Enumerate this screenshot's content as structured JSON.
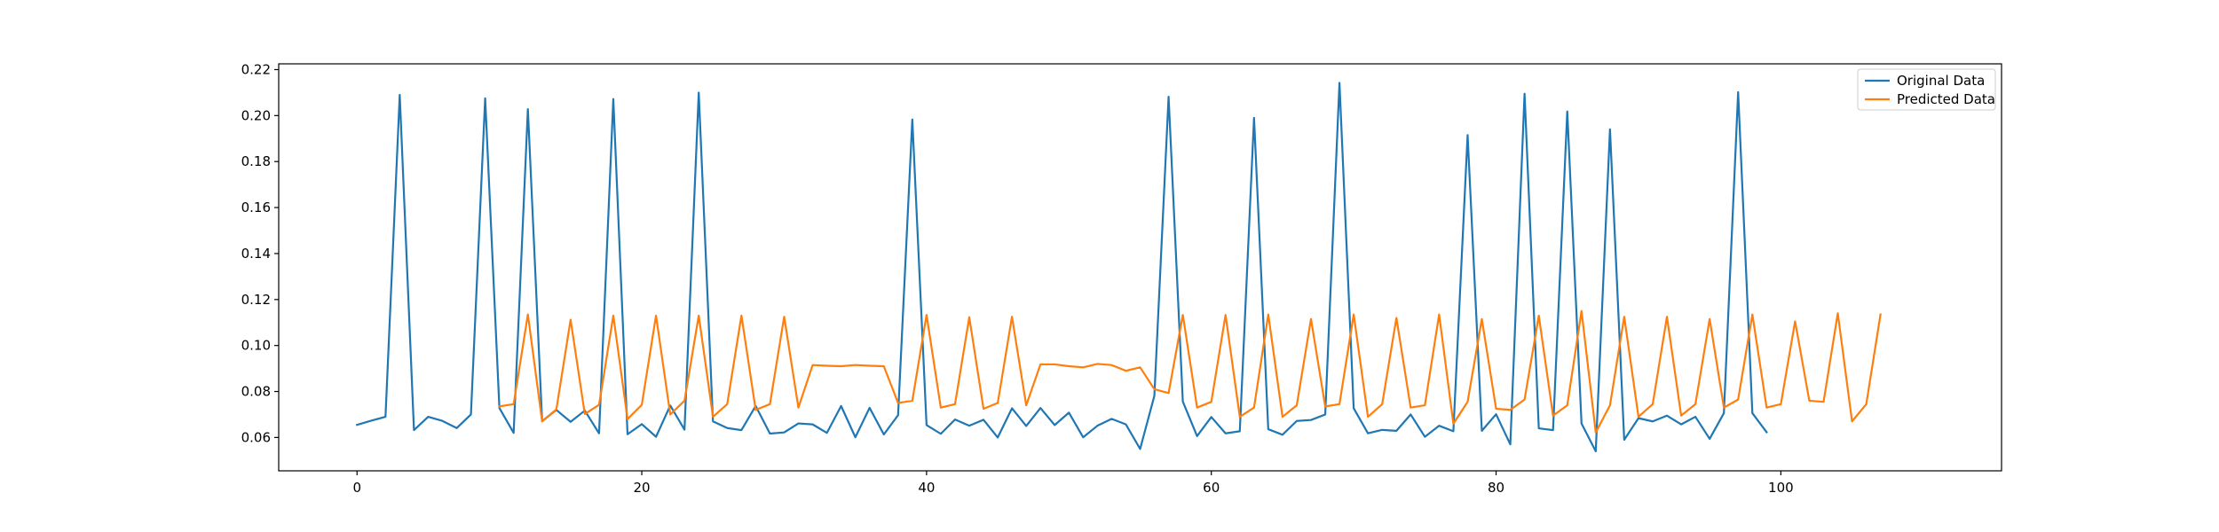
{
  "chart_data": {
    "type": "line",
    "title": "",
    "xlabel": "",
    "ylabel": "",
    "xlim": [
      -5.5,
      115.5
    ],
    "ylim": [
      0.0455,
      0.2225
    ],
    "xticks": [
      0,
      20,
      40,
      60,
      80,
      100
    ],
    "yticks": [
      0.06,
      0.08,
      0.1,
      0.12,
      0.14,
      0.16,
      0.18,
      0.2,
      0.22
    ],
    "xtick_labels": [
      "0",
      "20",
      "40",
      "60",
      "80",
      "100"
    ],
    "ytick_labels": [
      "0.06",
      "0.08",
      "0.10",
      "0.12",
      "0.14",
      "0.16",
      "0.18",
      "0.20",
      "0.22"
    ],
    "grid": false,
    "legend_position": "top-right",
    "series": [
      {
        "name": "Original Data",
        "color": "#1f77b4",
        "x_start": 0,
        "values": [
          0.0655,
          0.0673,
          0.069,
          0.209,
          0.0632,
          0.069,
          0.0672,
          0.0641,
          0.07,
          0.2075,
          0.0728,
          0.062,
          0.2028,
          0.0671,
          0.072,
          0.0668,
          0.0717,
          0.0618,
          0.2072,
          0.0614,
          0.0658,
          0.0603,
          0.0739,
          0.0634,
          0.21,
          0.067,
          0.0641,
          0.0632,
          0.0737,
          0.0617,
          0.0622,
          0.0661,
          0.0657,
          0.062,
          0.0737,
          0.0601,
          0.0729,
          0.0613,
          0.0697,
          0.1983,
          0.0654,
          0.0616,
          0.0678,
          0.0651,
          0.0677,
          0.06,
          0.0727,
          0.065,
          0.0728,
          0.0654,
          0.0708,
          0.0601,
          0.0651,
          0.0681,
          0.0657,
          0.055,
          0.0781,
          0.2082,
          0.0756,
          0.0606,
          0.0689,
          0.0618,
          0.0627,
          0.199,
          0.0636,
          0.0612,
          0.0672,
          0.0676,
          0.07,
          0.2142,
          0.0727,
          0.0618,
          0.0633,
          0.0629,
          0.07,
          0.0603,
          0.0651,
          0.0627,
          0.1915,
          0.0629,
          0.0701,
          0.057,
          0.2095,
          0.064,
          0.0632,
          0.2018,
          0.0661,
          0.054,
          0.194,
          0.059,
          0.0684,
          0.067,
          0.0695,
          0.0657,
          0.069,
          0.0594,
          0.0706,
          0.2102,
          0.0706,
          0.0623
        ]
      },
      {
        "name": "Predicted Data",
        "color": "#ff7f0e",
        "x_start": 10,
        "values": [
          0.0735,
          0.0745,
          0.1135,
          0.067,
          0.0722,
          0.1112,
          0.0702,
          0.0742,
          0.113,
          0.068,
          0.0742,
          0.113,
          0.07,
          0.076,
          0.113,
          0.069,
          0.0745,
          0.113,
          0.072,
          0.0745,
          0.1125,
          0.073,
          0.0915,
          0.0912,
          0.091,
          0.0915,
          0.0912,
          0.091,
          0.075,
          0.076,
          0.1133,
          0.073,
          0.0745,
          0.1123,
          0.0725,
          0.075,
          0.1125,
          0.074,
          0.0918,
          0.0918,
          0.091,
          0.0905,
          0.092,
          0.0915,
          0.089,
          0.0905,
          0.081,
          0.0793,
          0.1133,
          0.073,
          0.0755,
          0.1133,
          0.069,
          0.073,
          0.1135,
          0.069,
          0.074,
          0.1115,
          0.0735,
          0.0745,
          0.1135,
          0.069,
          0.0745,
          0.112,
          0.073,
          0.074,
          0.1135,
          0.066,
          0.0755,
          0.1115,
          0.0725,
          0.072,
          0.0765,
          0.113,
          0.0695,
          0.074,
          0.115,
          0.0622,
          0.074,
          0.1125,
          0.069,
          0.0745,
          0.1125,
          0.0695,
          0.0745,
          0.1115,
          0.073,
          0.0765,
          0.1135,
          0.073,
          0.0745,
          0.1105,
          0.076,
          0.0755,
          0.114,
          0.067,
          0.0745,
          0.1135
        ]
      }
    ]
  }
}
